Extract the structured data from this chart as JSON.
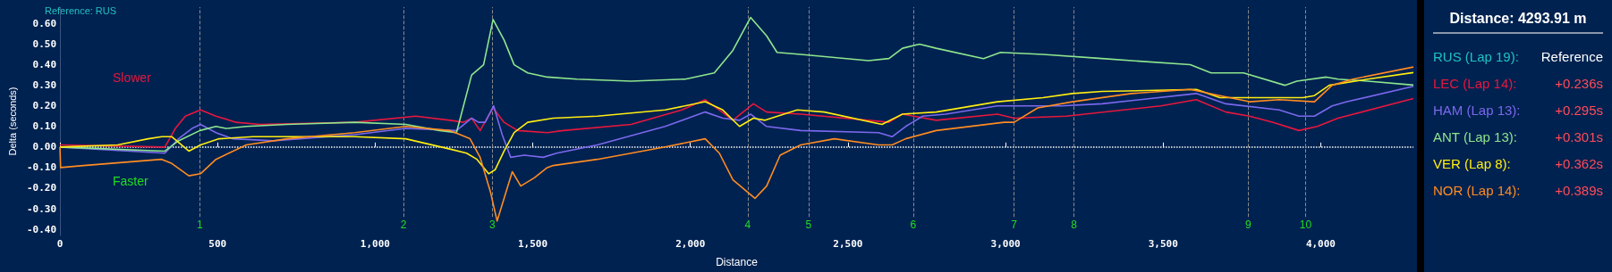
{
  "chart_data": {
    "type": "line",
    "xlabel": "Distance",
    "ylabel": "Delta (seconds)",
    "legend_title": "Distance: 4293.91 m",
    "legend": "right",
    "grid": false,
    "line_style": "solid",
    "marker": "none",
    "xlim": [
      0,
      4293.91
    ],
    "xticks": [
      0,
      {
        "value": 500,
        "label": "500"
      },
      {
        "value": 1000,
        "label": "1,000"
      },
      {
        "value": 1500,
        "label": "1,500"
      },
      {
        "value": 2000,
        "label": "2,000"
      },
      {
        "value": 2500,
        "label": "2,500"
      },
      {
        "value": 3000,
        "label": "3,000"
      },
      {
        "value": 3500,
        "label": "3,500"
      },
      {
        "value": 4000,
        "label": "4,000"
      }
    ],
    "ylim": [
      -0.43,
      0.68
    ],
    "yticks": [
      {
        "value": -0.4,
        "label": "-0.40"
      },
      {
        "value": -0.3,
        "label": "-0.30"
      },
      {
        "value": -0.2,
        "label": "-0.20"
      },
      {
        "value": -0.1,
        "label": "-0.10"
      },
      {
        "value": 0,
        "label": "0.00"
      },
      {
        "value": 0.1,
        "label": "0.10"
      },
      {
        "value": 0.2,
        "label": "0.20"
      },
      {
        "value": 0.3,
        "label": "0.30"
      },
      {
        "value": 0.4,
        "label": "0.40"
      },
      {
        "value": 0.5,
        "label": "0.50"
      },
      {
        "value": 0.6,
        "label": "0.60"
      }
    ],
    "series": [
      {
        "name": "LEC (Lap 14):",
        "color": "#e8173e",
        "x": [
          0,
          333,
          366,
          398,
          446,
          495,
          559,
          634,
          935,
          1129,
          1237,
          1280,
          1306,
          1333,
          1374,
          1409,
          1452,
          1546,
          1597,
          1812,
          1973,
          2047,
          2092,
          2135,
          2200,
          2242,
          2350,
          2565,
          2630,
          2673,
          2780,
          2974,
          3027,
          3193,
          3493,
          3605,
          3699,
          3774,
          3849,
          3931,
          3989,
          4055,
          4293.91
        ],
        "values": [
          0.01,
          0,
          0.09,
          0.15,
          0.18,
          0.15,
          0.12,
          0.11,
          0.12,
          0.15,
          0.13,
          0.12,
          0.14,
          0.08,
          0.19,
          0.12,
          0.08,
          0.07,
          0.08,
          0.11,
          0.18,
          0.23,
          0.18,
          0.13,
          0.21,
          0.17,
          0.16,
          0.13,
          0.12,
          0.16,
          0.13,
          0.16,
          0.14,
          0.15,
          0.2,
          0.23,
          0.17,
          0.15,
          0.12,
          0.08,
          0.1,
          0.14,
          0.236
        ]
      },
      {
        "name": "HAM (Lap 13):",
        "color": "#7b68ee",
        "x": [
          0,
          333,
          376,
          419,
          446,
          495,
          548,
          677,
          935,
          1097,
          1258,
          1306,
          1328,
          1349,
          1376,
          1403,
          1430,
          1473,
          1533,
          1576,
          1705,
          1920,
          2047,
          2103,
          2156,
          2191,
          2242,
          2350,
          2597,
          2640,
          2683,
          2737,
          2810,
          2974,
          3176,
          3306,
          3605,
          3699,
          3868,
          3931,
          3980,
          4036,
          4083,
          4293.91
        ],
        "values": [
          0,
          -0.03,
          0.04,
          0.09,
          0.11,
          0.07,
          0.04,
          0.03,
          0.06,
          0.09,
          0.08,
          0.14,
          0.12,
          0.12,
          0.2,
          0.06,
          -0.05,
          -0.04,
          -0.05,
          -0.03,
          0.01,
          0.1,
          0.17,
          0.14,
          0.13,
          0.16,
          0.1,
          0.08,
          0.07,
          0.05,
          0.1,
          0.15,
          0.16,
          0.2,
          0.2,
          0.21,
          0.26,
          0.21,
          0.18,
          0.15,
          0.15,
          0.2,
          0.22,
          0.295
        ]
      },
      {
        "name": "ANT (Lap 13):",
        "color": "#8ee68e",
        "x": [
          0,
          333,
          376,
          444,
          495,
          527,
          591,
          720,
          935,
          1097,
          1204,
          1258,
          1306,
          1344,
          1374,
          1409,
          1441,
          1484,
          1546,
          1640,
          1812,
          1984,
          2076,
          2135,
          2191,
          2242,
          2275,
          2350,
          2565,
          2630,
          2673,
          2727,
          2780,
          2930,
          2984,
          3119,
          3306,
          3586,
          3652,
          3755,
          3886,
          3924,
          4018,
          4055,
          4149,
          4293.91
        ],
        "values": [
          0,
          -0.02,
          0.03,
          0.08,
          0.1,
          0.09,
          0.1,
          0.11,
          0.12,
          0.11,
          0.08,
          0.07,
          0.35,
          0.4,
          0.62,
          0.52,
          0.4,
          0.36,
          0.34,
          0.33,
          0.32,
          0.33,
          0.36,
          0.47,
          0.63,
          0.54,
          0.46,
          0.45,
          0.42,
          0.43,
          0.48,
          0.5,
          0.48,
          0.43,
          0.46,
          0.45,
          0.43,
          0.4,
          0.36,
          0.36,
          0.3,
          0.32,
          0.34,
          0.33,
          0.32,
          0.301
        ]
      },
      {
        "name": "VER (Lap 8):",
        "color": "#ffee11",
        "x": [
          0,
          183,
          280,
          323,
          355,
          409,
          446,
          505,
          613,
          720,
          935,
          1097,
          1237,
          1290,
          1323,
          1360,
          1381,
          1409,
          1441,
          1484,
          1565,
          1705,
          1920,
          2047,
          2103,
          2156,
          2200,
          2237,
          2339,
          2425,
          2608,
          2673,
          2780,
          2974,
          3119,
          3212,
          3306,
          3605,
          3680,
          3755,
          3943,
          3980,
          4027,
          4149,
          4293.91
        ],
        "values": [
          0,
          0.01,
          0.04,
          0.05,
          0.05,
          -0.02,
          0.01,
          0.04,
          0.05,
          0.05,
          0.05,
          0.04,
          -0.01,
          -0.03,
          -0.06,
          -0.13,
          -0.11,
          -0.02,
          0.07,
          0.12,
          0.14,
          0.15,
          0.18,
          0.22,
          0.18,
          0.1,
          0.14,
          0.13,
          0.18,
          0.17,
          0.11,
          0.16,
          0.17,
          0.22,
          0.24,
          0.26,
          0.27,
          0.28,
          0.24,
          0.24,
          0.24,
          0.25,
          0.3,
          0.33,
          0.362
        ]
      },
      {
        "name": "NOR (Lap 14):",
        "color": "#ff8c22",
        "x": [
          0,
          2,
          75,
          323,
          355,
          409,
          446,
          495,
          591,
          720,
          935,
          1097,
          1237,
          1301,
          1333,
          1366,
          1387,
          1409,
          1435,
          1462,
          1505,
          1546,
          1565,
          1705,
          1920,
          2047,
          2092,
          2135,
          2205,
          2242,
          2285,
          2350,
          2457,
          2597,
          2640,
          2683,
          2780,
          2995,
          3027,
          3102,
          3212,
          3399,
          3586,
          3680,
          3774,
          3868,
          3980,
          4036,
          4102,
          4293.91
        ],
        "values": [
          0,
          -0.1,
          -0.09,
          -0.06,
          -0.08,
          -0.14,
          -0.13,
          -0.06,
          0.01,
          0.04,
          0.07,
          0.1,
          0.08,
          0.04,
          -0.05,
          -0.22,
          -0.36,
          -0.25,
          -0.12,
          -0.19,
          -0.15,
          -0.1,
          -0.09,
          -0.06,
          0,
          0.04,
          -0.03,
          -0.16,
          -0.25,
          -0.19,
          -0.04,
          0.01,
          0.04,
          0.01,
          0.01,
          0.04,
          0.08,
          0.12,
          0.12,
          0.19,
          0.22,
          0.26,
          0.28,
          0.25,
          0.22,
          0.23,
          0.22,
          0.3,
          0.33,
          0.389
        ]
      }
    ],
    "ref_lines": [
      {
        "axis": "y",
        "value": 0,
        "color": "#ffffff",
        "line_style": "dotted"
      },
      {
        "axis": "x",
        "value": 444,
        "color": "#8a8a8a",
        "line_style": "dashed"
      },
      {
        "axis": "x",
        "value": 1090,
        "color": "#8a8a8a",
        "line_style": "dashed"
      },
      {
        "axis": "x",
        "value": 1372,
        "color": "#8a8a8a",
        "line_style": "dashed"
      },
      {
        "axis": "x",
        "value": 2182,
        "color": "#8a8a8a",
        "line_style": "dashed"
      },
      {
        "axis": "x",
        "value": 2375,
        "color": "#8a8a8a",
        "line_style": "dashed"
      },
      {
        "axis": "x",
        "value": 2707,
        "color": "#8a8a8a",
        "line_style": "dashed"
      },
      {
        "axis": "x",
        "value": 3027,
        "color": "#8a8a8a",
        "line_style": "dashed"
      },
      {
        "axis": "x",
        "value": 3217,
        "color": "#8a8a8a",
        "line_style": "dashed"
      },
      {
        "axis": "x",
        "value": 3770,
        "color": "#8a8a8a",
        "line_style": "dashed"
      },
      {
        "axis": "x",
        "value": 3952,
        "color": "#8a8a8a",
        "line_style": "dashed"
      }
    ],
    "annotations": [
      "Reference: RUS",
      "Slower",
      "Faster",
      "RUS (Lap 19):",
      "Reference",
      "+0.236s",
      "+0.295s",
      "+0.301s",
      "+0.362s",
      "+0.389s",
      "1",
      "2",
      "3",
      "4",
      "5",
      "6",
      "7",
      "8",
      "9",
      "10"
    ]
  }
}
